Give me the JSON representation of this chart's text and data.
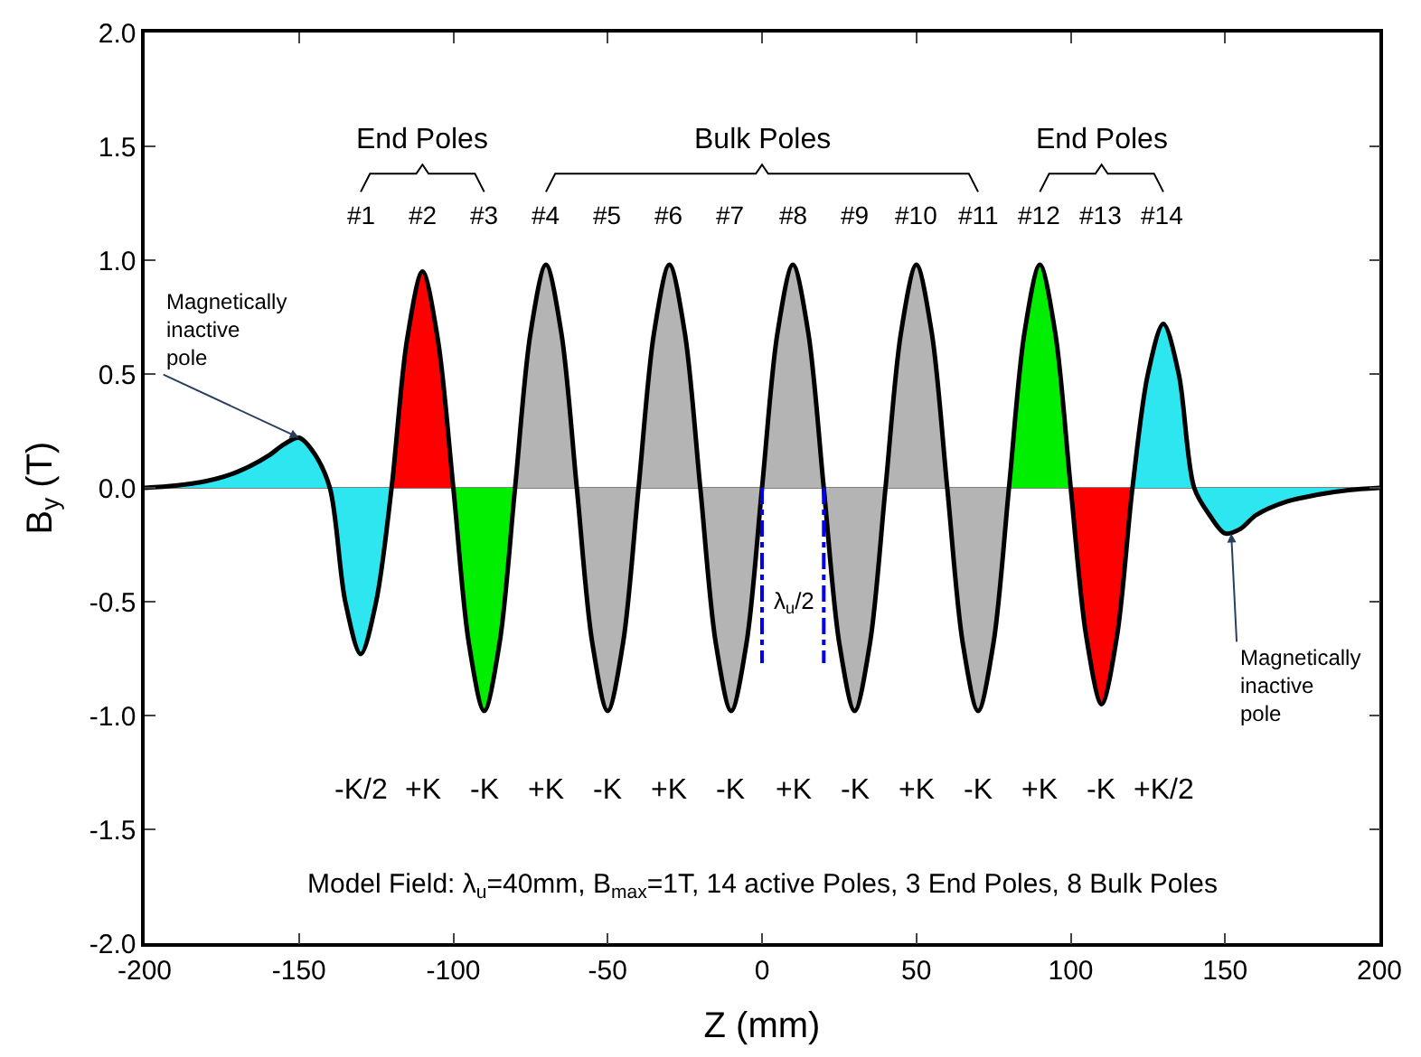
{
  "chart_data": {
    "type": "line",
    "xlabel": "Z (mm)",
    "ylabel": "B$_{y}$ (T)",
    "xlim": [
      -200,
      200
    ],
    "xticks": [
      -200,
      -150,
      -100,
      -50,
      0,
      50,
      100,
      150,
      200
    ],
    "ylim": [
      -2,
      2
    ],
    "yticks": [
      {
        "value": -2,
        "label": "-2.0"
      },
      {
        "value": -1.5,
        "label": "-1.5"
      },
      {
        "value": -1,
        "label": "-1.0"
      },
      {
        "value": -0.5,
        "label": "-0.5"
      },
      {
        "value": 0,
        "label": "0.0"
      },
      {
        "value": 0.5,
        "label": "0.5"
      },
      {
        "value": 1,
        "label": "1.0"
      },
      {
        "value": 1.5,
        "label": "1.5"
      },
      {
        "value": 2,
        "label": "2.0"
      }
    ],
    "grid": false,
    "ref_lines": [
      {
        "axis": "y",
        "value": 0,
        "color": "#808080"
      }
    ],
    "series": [
      {
        "type": "area",
        "color": "#2ee6f0",
        "x": [
          -200,
          -190,
          -180,
          -170,
          -160,
          -155,
          -150,
          -145,
          -140
        ],
        "values": [
          0,
          0.01,
          0.03,
          0.07,
          0.14,
          0.19,
          0.22,
          0.15,
          0
        ]
      },
      {
        "type": "area",
        "color": "#2ee6f0",
        "x": [
          -140,
          -135,
          -130,
          -125,
          -120
        ],
        "values": [
          0,
          -0.5,
          -0.73,
          -0.5,
          0
        ]
      },
      {
        "type": "area",
        "color": "#ff0000",
        "x": [
          -120,
          -115,
          -110,
          -105,
          -100
        ],
        "values": [
          0,
          0.65,
          0.95,
          0.65,
          0
        ]
      },
      {
        "type": "area",
        "color": "#00ee00",
        "x": [
          -100,
          -95,
          -90,
          -85,
          -80
        ],
        "values": [
          0,
          -0.68,
          -0.98,
          -0.68,
          0
        ]
      },
      {
        "type": "area",
        "color": "#b4b4b4",
        "x": [
          -80,
          -75,
          -70,
          -65,
          -60
        ],
        "values": [
          0,
          0.68,
          0.98,
          0.68,
          0
        ]
      },
      {
        "type": "area",
        "color": "#b4b4b4",
        "x": [
          -60,
          -55,
          -50,
          -45,
          -40
        ],
        "values": [
          0,
          -0.68,
          -0.98,
          -0.68,
          0
        ]
      },
      {
        "type": "area",
        "color": "#b4b4b4",
        "x": [
          -40,
          -35,
          -30,
          -25,
          -20
        ],
        "values": [
          0,
          0.68,
          0.98,
          0.68,
          0
        ]
      },
      {
        "type": "area",
        "color": "#b4b4b4",
        "x": [
          -20,
          -15,
          -10,
          -5,
          0
        ],
        "values": [
          0,
          -0.68,
          -0.98,
          -0.68,
          0
        ]
      },
      {
        "type": "area",
        "color": "#b4b4b4",
        "x": [
          0,
          5,
          10,
          15,
          20
        ],
        "values": [
          0,
          0.68,
          0.98,
          0.68,
          0
        ]
      },
      {
        "type": "area",
        "color": "#b4b4b4",
        "x": [
          20,
          25,
          30,
          35,
          40
        ],
        "values": [
          0,
          -0.68,
          -0.98,
          -0.68,
          0
        ]
      },
      {
        "type": "area",
        "color": "#b4b4b4",
        "x": [
          40,
          45,
          50,
          55,
          60
        ],
        "values": [
          0,
          0.68,
          0.98,
          0.68,
          0
        ]
      },
      {
        "type": "area",
        "color": "#b4b4b4",
        "x": [
          60,
          65,
          70,
          75,
          80
        ],
        "values": [
          0,
          -0.68,
          -0.98,
          -0.68,
          0
        ]
      },
      {
        "type": "area",
        "color": "#00ee00",
        "x": [
          80,
          85,
          90,
          95,
          100
        ],
        "values": [
          0,
          0.68,
          0.98,
          0.68,
          0
        ]
      },
      {
        "type": "area",
        "color": "#ff0000",
        "x": [
          100,
          105,
          110,
          115,
          120
        ],
        "values": [
          0,
          -0.65,
          -0.95,
          -0.65,
          0
        ]
      },
      {
        "type": "area",
        "color": "#2ee6f0",
        "x": [
          120,
          125,
          130,
          135,
          140
        ],
        "values": [
          0,
          0.5,
          0.72,
          0.5,
          0
        ]
      },
      {
        "type": "area",
        "color": "#2ee6f0",
        "x": [
          140,
          145,
          150,
          155,
          160,
          170,
          180,
          190,
          200
        ],
        "values": [
          0,
          -0.12,
          -0.2,
          -0.18,
          -0.12,
          -0.06,
          -0.03,
          -0.01,
          0
        ]
      },
      {
        "color": "#000000",
        "line_style": "solid",
        "x": [
          -200,
          -190,
          -180,
          -170,
          -160,
          -155,
          -150,
          -145,
          -140,
          -135,
          -130,
          -125,
          -120,
          -115,
          -110,
          -105,
          -100,
          -95,
          -90,
          -85,
          -80,
          -75,
          -70,
          -65,
          -60,
          -55,
          -50,
          -45,
          -40,
          -35,
          -30,
          -25,
          -20,
          -15,
          -10,
          -5,
          0,
          5,
          10,
          15,
          20,
          25,
          30,
          35,
          40,
          45,
          50,
          55,
          60,
          65,
          70,
          75,
          80,
          85,
          90,
          95,
          100,
          105,
          110,
          115,
          120,
          125,
          130,
          135,
          140,
          145,
          150,
          155,
          160,
          170,
          180,
          190,
          200
        ],
        "values": [
          0,
          0.01,
          0.03,
          0.07,
          0.14,
          0.19,
          0.22,
          0.15,
          0,
          -0.5,
          -0.73,
          -0.5,
          0,
          0.65,
          0.95,
          0.65,
          0,
          -0.68,
          -0.98,
          -0.68,
          0,
          0.68,
          0.98,
          0.68,
          0,
          -0.68,
          -0.98,
          -0.68,
          0,
          0.68,
          0.98,
          0.68,
          0,
          -0.68,
          -0.98,
          -0.68,
          0,
          0.68,
          0.98,
          0.68,
          0,
          -0.68,
          -0.98,
          -0.68,
          0,
          0.68,
          0.98,
          0.68,
          0,
          -0.68,
          -0.98,
          -0.68,
          0,
          0.68,
          0.98,
          0.68,
          0,
          -0.65,
          -0.95,
          -0.65,
          0,
          0.5,
          0.72,
          0.5,
          0,
          -0.12,
          -0.2,
          -0.18,
          -0.12,
          -0.06,
          -0.03,
          -0.01,
          0
        ]
      },
      {
        "type": "line",
        "color": "#0000ee",
        "line_style": "dashed",
        "x": [
          0,
          0
        ],
        "values": [
          0,
          -0.77
        ]
      },
      {
        "type": "line",
        "color": "#0000ee",
        "line_style": "dashed",
        "x": [
          20,
          20
        ],
        "values": [
          0,
          -0.77
        ]
      }
    ],
    "annotations": [
      "End Poles",
      "Bulk Poles",
      "End Poles",
      "#1",
      "#2",
      "#3",
      "#4",
      "#5",
      "#6",
      "#7",
      "#8",
      "#9",
      "#10",
      "#11",
      "#12",
      "#13",
      "#14",
      "-K/2",
      "+K",
      "-K",
      "+K",
      "-K",
      "+K",
      "-K",
      "+K",
      "-K",
      "+K",
      "-K",
      "+K",
      "-K",
      "+K/2",
      "λ$_{u}$/2",
      {
        "text": "Magnetically inactive pole",
        "x": -150,
        "y": 0.22
      },
      {
        "text": "Magnetically inactive pole",
        "x": 152,
        "y": -0.2
      },
      "Model Field: λ$_{u}$=40mm, B$_{max}$=1T, 14 active Poles, 3 End Poles, 8 Bulk Poles"
    ]
  }
}
